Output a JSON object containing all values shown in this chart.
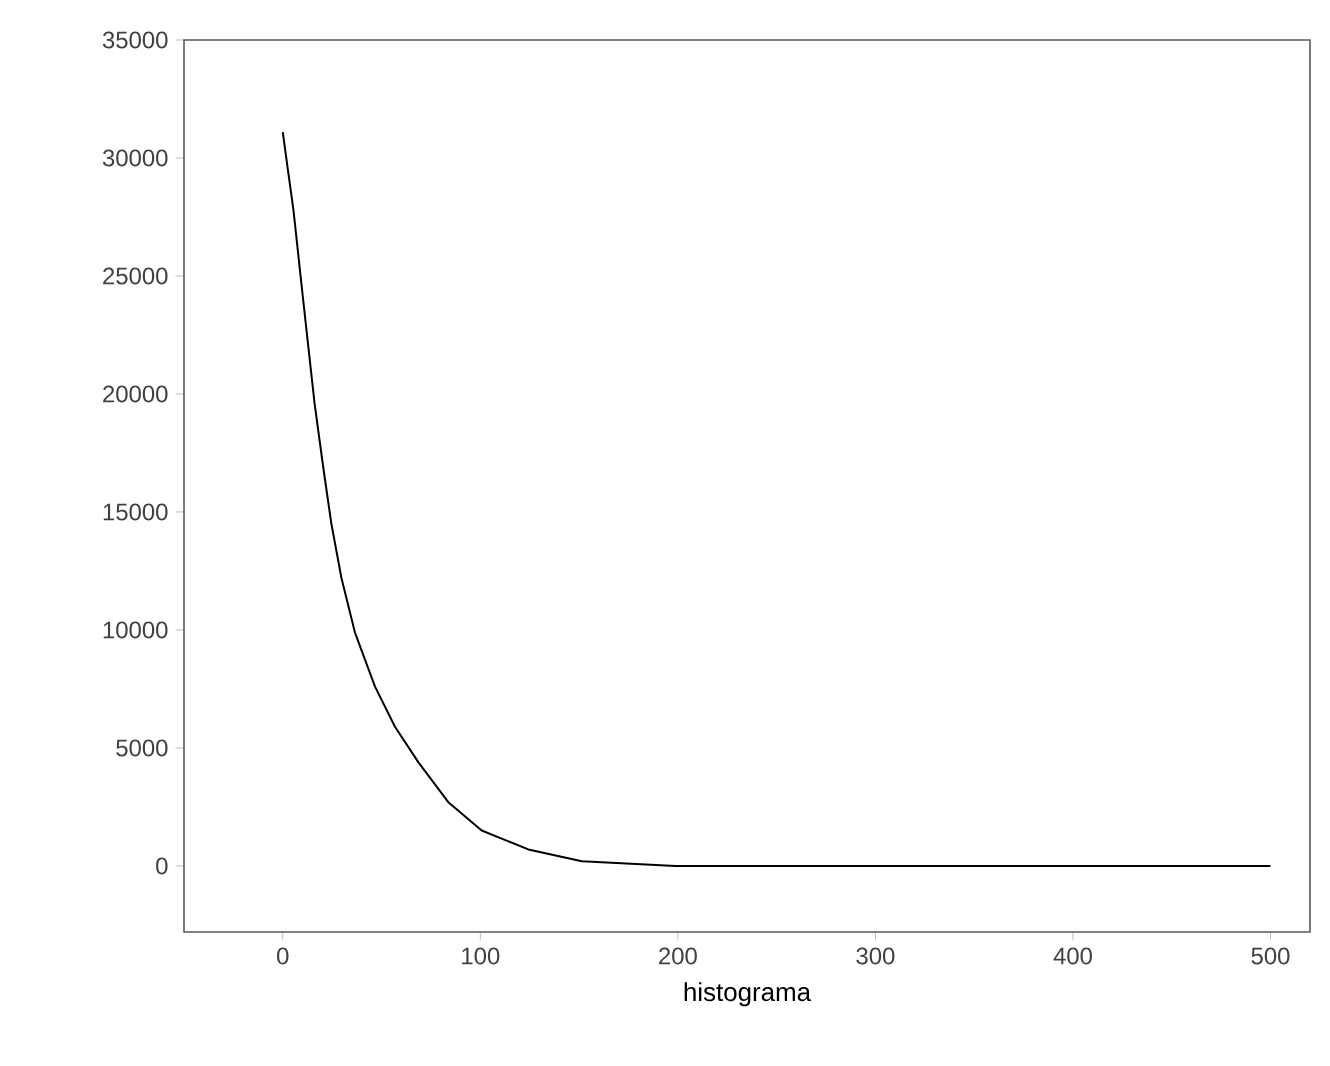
{
  "chart_data": {
    "type": "line",
    "xlabel": "histograma",
    "x": [
      0,
      2.6,
      5.4,
      9.4,
      12.8,
      16.1,
      20.3,
      24.6,
      29.7,
      36.5,
      46.7,
      56.8,
      68.6,
      83.8,
      100.7,
      124.3,
      151.4,
      198.8,
      250,
      300,
      400,
      500
    ],
    "series": [
      {
        "color": "#000000",
        "values": [
          31100,
          29500,
          27800,
          24700,
          22100,
          19600,
          17000,
          14500,
          12200,
          9900,
          7600,
          5900,
          4400,
          2700,
          1500,
          700,
          200,
          0,
          0,
          0,
          0,
          0
        ]
      }
    ],
    "xlim": [
      -50,
      520
    ],
    "ylim": [
      -2800,
      35000
    ],
    "xticks": [
      0,
      100,
      200,
      300,
      400,
      500
    ],
    "yticks": [
      0,
      5000,
      10000,
      15000,
      20000,
      25000,
      30000,
      35000
    ],
    "grid": false,
    "marker": "none",
    "line_style": "solid"
  }
}
